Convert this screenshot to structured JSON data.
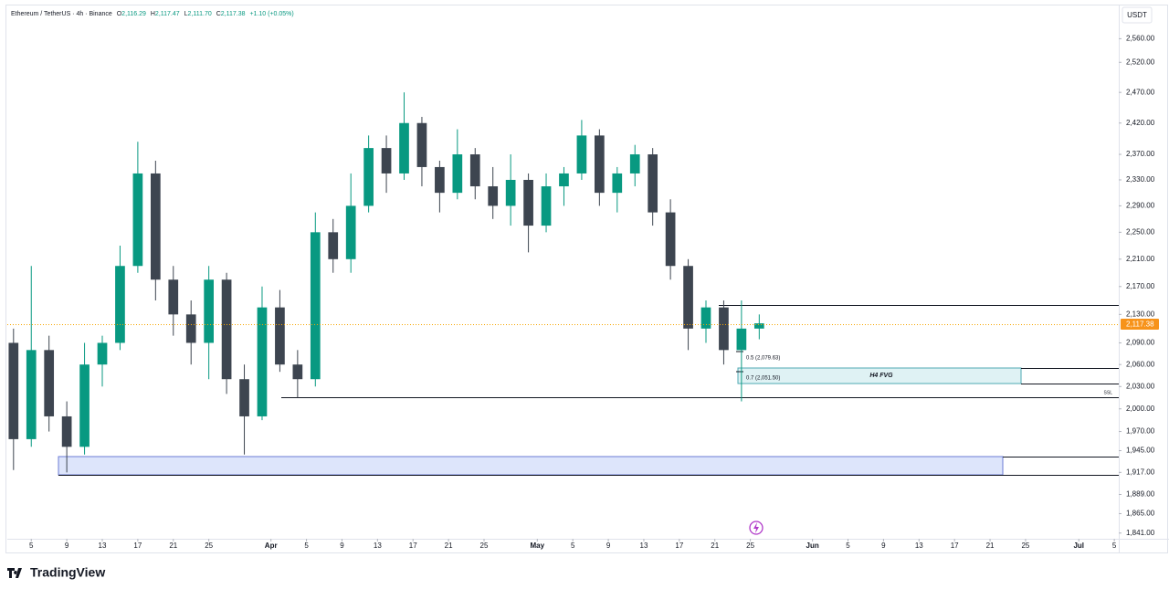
{
  "header": {
    "symbol": "Ethereum / TetherUS · 4h · Binance",
    "o_key": "O",
    "o": "2,116.29",
    "h_key": "H",
    "h": "2,117.47",
    "l_key": "L",
    "l": "2,111.70",
    "c_key": "C",
    "c": "2,117.38",
    "change": "+1.10 (+0.05%)",
    "currency": "USDT"
  },
  "annotations": {
    "fib_05": "0.5 (2,079.63)",
    "fib_07": "0.7 (2,051.50)",
    "fvg": "H4 FVG",
    "ssl": "SSL"
  },
  "brand": "TradingView",
  "chart_data": {
    "type": "candlestick",
    "log_scale": true,
    "up_color": "#089981",
    "down_color": "#3d4550",
    "x": [
      3,
      5,
      7,
      9,
      11,
      13,
      15,
      17,
      19,
      21,
      23,
      25,
      27,
      29,
      31,
      33,
      35,
      37,
      39,
      41,
      43,
      45,
      47,
      49,
      51,
      53,
      55,
      57,
      59,
      61,
      63,
      65,
      67,
      69,
      71,
      73,
      75,
      77,
      79,
      81,
      83,
      85,
      87
    ],
    "open": [
      2090,
      1960,
      2080,
      1990,
      1950,
      2060,
      2090,
      2200,
      2340,
      2180,
      2130,
      2090,
      2180,
      2040,
      1990,
      2140,
      2060,
      2040,
      2250,
      2210,
      2290,
      2380,
      2340,
      2420,
      2350,
      2310,
      2370,
      2320,
      2290,
      2330,
      2260,
      2320,
      2340,
      2400,
      2310,
      2340,
      2370,
      2280,
      2200,
      2110,
      2140,
      2080,
      2110
    ],
    "high": [
      2110,
      2200,
      2100,
      2010,
      2090,
      2100,
      2230,
      2390,
      2360,
      2200,
      2150,
      2200,
      2190,
      2060,
      2170,
      2165,
      2080,
      2280,
      2270,
      2340,
      2400,
      2400,
      2470,
      2430,
      2360,
      2410,
      2380,
      2350,
      2370,
      2340,
      2340,
      2350,
      2425,
      2410,
      2350,
      2385,
      2380,
      2300,
      2210,
      2150,
      2150,
      2150,
      2130
    ],
    "low": [
      1920,
      1950,
      1970,
      1917,
      1940,
      2030,
      2080,
      2190,
      2150,
      2100,
      2060,
      2040,
      2020,
      1940,
      1985,
      2050,
      2015,
      2030,
      2190,
      2190,
      2280,
      2310,
      2330,
      2320,
      2280,
      2300,
      2300,
      2270,
      2260,
      2220,
      2250,
      2290,
      2330,
      2290,
      2280,
      2320,
      2260,
      2180,
      2080,
      2090,
      2060,
      2010,
      2095
    ],
    "close": [
      1960,
      2080,
      1990,
      1950,
      2060,
      2090,
      2200,
      2340,
      2180,
      2130,
      2090,
      2180,
      2040,
      1990,
      2140,
      2060,
      2040,
      2250,
      2210,
      2290,
      2380,
      2340,
      2420,
      2350,
      2310,
      2370,
      2320,
      2290,
      2330,
      2260,
      2320,
      2340,
      2400,
      2310,
      2340,
      2370,
      2280,
      2200,
      2110,
      2140,
      2080,
      2110,
      2117.38
    ],
    "xlim": [
      2.3,
      127.5
    ],
    "xticks": [
      {
        "value": 5,
        "label": "5"
      },
      {
        "value": 9,
        "label": "9"
      },
      {
        "value": 13,
        "label": "13"
      },
      {
        "value": 17,
        "label": "17"
      },
      {
        "value": 21,
        "label": "21"
      },
      {
        "value": 25,
        "label": "25"
      },
      {
        "value": 32,
        "label": "Apr"
      },
      {
        "value": 36,
        "label": "5"
      },
      {
        "value": 40,
        "label": "9"
      },
      {
        "value": 44,
        "label": "13"
      },
      {
        "value": 48,
        "label": "17"
      },
      {
        "value": 52,
        "label": "21"
      },
      {
        "value": 56,
        "label": "25"
      },
      {
        "value": 62,
        "label": "May"
      },
      {
        "value": 66,
        "label": "5"
      },
      {
        "value": 70,
        "label": "9"
      },
      {
        "value": 74,
        "label": "13"
      },
      {
        "value": 78,
        "label": "17"
      },
      {
        "value": 82,
        "label": "21"
      },
      {
        "value": 86,
        "label": "25"
      },
      {
        "value": 93,
        "label": "Jun"
      },
      {
        "value": 97,
        "label": "5"
      },
      {
        "value": 101,
        "label": "9"
      },
      {
        "value": 105,
        "label": "13"
      },
      {
        "value": 109,
        "label": "17"
      },
      {
        "value": 113,
        "label": "21"
      },
      {
        "value": 117,
        "label": "25"
      },
      {
        "value": 123,
        "label": "Jul"
      },
      {
        "value": 127,
        "label": "5"
      }
    ],
    "ylim": [
      1834,
      2619
    ],
    "yticks": [
      {
        "value": 2560,
        "label": "2,560.00"
      },
      {
        "value": 2520,
        "label": "2,520.00"
      },
      {
        "value": 2470,
        "label": "2,470.00"
      },
      {
        "value": 2420,
        "label": "2,420.00"
      },
      {
        "value": 2370,
        "label": "2,370.00"
      },
      {
        "value": 2330,
        "label": "2,330.00"
      },
      {
        "value": 2290,
        "label": "2,290.00"
      },
      {
        "value": 2250,
        "label": "2,250.00"
      },
      {
        "value": 2210,
        "label": "2,210.00"
      },
      {
        "value": 2170,
        "label": "2,170.00"
      },
      {
        "value": 2130,
        "label": "2,130.00"
      },
      {
        "value": 2090,
        "label": "2,090.00"
      },
      {
        "value": 2060,
        "label": "2,060.00"
      },
      {
        "value": 2030,
        "label": "2,030.00"
      },
      {
        "value": 2000,
        "label": "2,000.00"
      },
      {
        "value": 1970,
        "label": "1,970.00"
      },
      {
        "value": 1945,
        "label": "1,945.00"
      },
      {
        "value": 1917,
        "label": "1,917.00"
      },
      {
        "value": 1889,
        "label": "1,889.00"
      },
      {
        "value": 1865,
        "label": "1,865.00"
      },
      {
        "value": 1841,
        "label": "1,841.00"
      }
    ]
  }
}
